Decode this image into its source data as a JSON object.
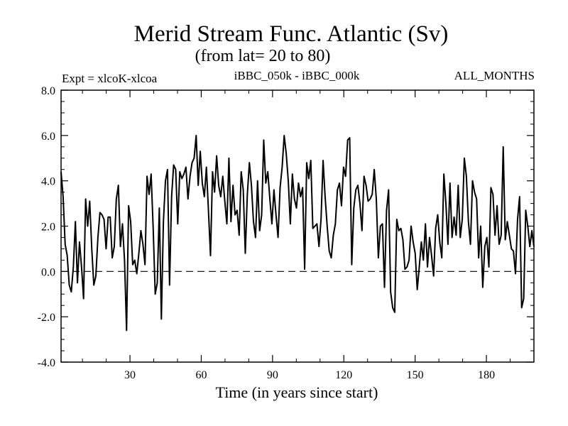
{
  "chart_data": {
    "type": "line",
    "title": "Merid Stream Func. Atlantic (Sv)",
    "subtitle": "(from lat= 20 to 80)",
    "left_label": "Expt = xlcoK-xlcoa",
    "center_label": "iBBC_050k - iBBC_000k",
    "right_label": "ALL_MONTHS",
    "xlabel": "Time (in years since start)",
    "ylabel": "",
    "xlim": [
      1,
      200
    ],
    "ylim": [
      -4.0,
      8.0
    ],
    "x_ticks": [
      30,
      60,
      90,
      120,
      150,
      180
    ],
    "y_ticks": [
      "-4.0",
      "-2.0",
      "0.0",
      "2.0",
      "4.0",
      "6.0",
      "8.0"
    ],
    "reference_line": 0.0,
    "series": [
      {
        "name": "iBBC_050k - iBBC_000k",
        "values": [
          4.4,
          3.3,
          1.2,
          0.7,
          -0.6,
          -0.9,
          0.2,
          2.2,
          -0.5,
          1.3,
          0.2,
          -1.2,
          3.2,
          2.0,
          3.1,
          1.0,
          -0.6,
          -0.2,
          1.5,
          2.6,
          2.5,
          2.3,
          1.0,
          2.4,
          2.4,
          0.6,
          1.1,
          3.2,
          3.8,
          1.1,
          2.1,
          0.5,
          -2.6,
          2.9,
          2.2,
          0.3,
          0.5,
          -0.1,
          0.8,
          1.8,
          1.2,
          0.3,
          4.2,
          3.4,
          4.3,
          1.9,
          -1.0,
          -0.5,
          2.8,
          -2.1,
          2.2,
          4.0,
          4.5,
          -0.6,
          3.3,
          4.7,
          4.5,
          2.1,
          4.4,
          4.1,
          4.3,
          4.6,
          3.2,
          4.2,
          4.8,
          5.0,
          6.0,
          3.8,
          5.3,
          3.9,
          3.3,
          4.6,
          2.7,
          0.7,
          4.4,
          3.5,
          5.1,
          3.8,
          3.3,
          4.2,
          3.1,
          2.1,
          5.0,
          2.2,
          3.8,
          2.5,
          2.7,
          1.6,
          4.4,
          3.6,
          0.8,
          3.4,
          4.8,
          3.8,
          2.2,
          1.5,
          4.0,
          1.8,
          2.5,
          5.8,
          3.9,
          4.4,
          3.2,
          2.1,
          3.6,
          2.5,
          1.5,
          3.7,
          4.6,
          6.0,
          5.2,
          4.0,
          2.1,
          4.3,
          3.2,
          2.8,
          3.9,
          3.3,
          3.7,
          0.1,
          4.8,
          4.1,
          4.9,
          1.9,
          2.0,
          2.1,
          1.1,
          2.3,
          4.9,
          3.3,
          2.0,
          0.9,
          0.6,
          1.6,
          2.1,
          3.6,
          3.9,
          2.9,
          4.6,
          4.2,
          5.8,
          5.9,
          0.3,
          2.8,
          3.6,
          3.8,
          3.0,
          1.8,
          4.2,
          3.8,
          3.1,
          3.2,
          3.4,
          4.5,
          3.2,
          0.6,
          2.0,
          2.1,
          -0.7,
          2.7,
          3.6,
          -0.9,
          -1.6,
          -1.8,
          2.3,
          1.8,
          1.9,
          1.4,
          0.1,
          0.2,
          0.5,
          2.0,
          1.3,
          0.8,
          -0.8,
          0.2,
          1.3,
          0.5,
          2.1,
          0.2,
          1.5,
          0.7,
          -0.2,
          1.9,
          2.5,
          1.3,
          0.6,
          4.3,
          3.0,
          1.2,
          3.9,
          1.5,
          2.4,
          1.6,
          3.8,
          1.5,
          2.3,
          5.0,
          4.2,
          2.2,
          1.2,
          4.0,
          3.5,
          3.2,
          0.6,
          2.0,
          -0.7,
          1.1,
          1.5,
          0.2,
          3.7,
          3.4,
          1.6,
          2.9,
          1.2,
          1.6,
          5.5,
          1.4,
          2.2,
          1.6,
          1.0,
          0.9,
          -0.1,
          2.3,
          3.3,
          -1.6,
          -1.2,
          2.7,
          2.0,
          1.1,
          1.8,
          1.1
        ]
      }
    ]
  }
}
